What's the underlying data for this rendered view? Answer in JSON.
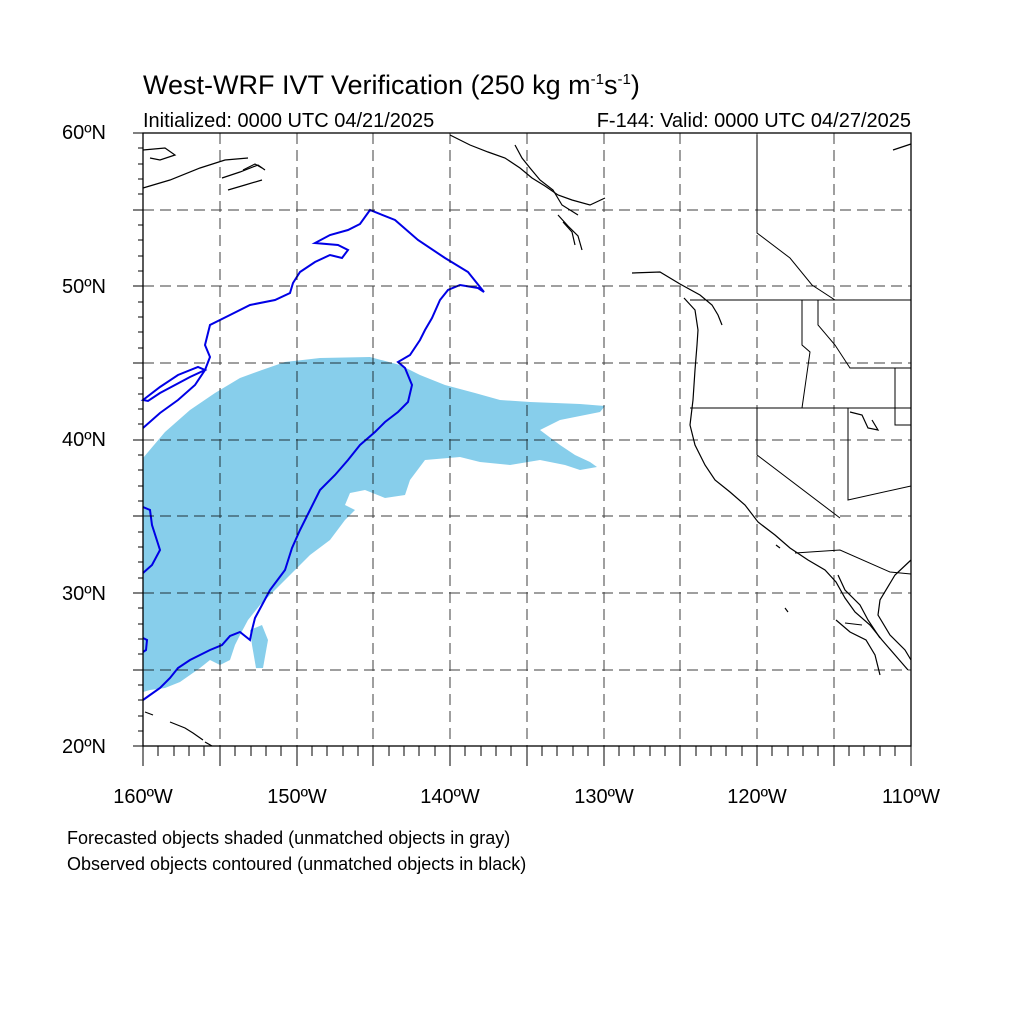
{
  "title": {
    "main": "West-WRF IVT Verification (250 kg m",
    "exp1": "-1",
    "mid": "s",
    "exp2": "-1",
    "end": ")"
  },
  "init_text": "Initialized: 0000 UTC 04/21/2025",
  "valid_text": "F-144: Valid: 0000 UTC 04/27/2025",
  "lat_labels": [
    "60ºN",
    "50ºN",
    "40ºN",
    "30ºN",
    "20ºN"
  ],
  "lon_labels": [
    "160ºW",
    "150ºW",
    "140ºW",
    "130ºW",
    "120ºW",
    "110ºW"
  ],
  "notes": [
    "Forecasted objects shaded (unmatched objects in gray)",
    "Observed objects contoured (unmatched objects in black)"
  ],
  "colors": {
    "forecast_fill": "#87ceeb",
    "observed_contour": "#0000e6",
    "coast": "#000000",
    "grid": "#000000"
  },
  "map": {
    "lat_range": [
      20,
      60
    ],
    "lon_range": [
      -160,
      -110
    ],
    "grid_spacing_deg": 5,
    "projection": "cylindrical equidistant"
  }
}
